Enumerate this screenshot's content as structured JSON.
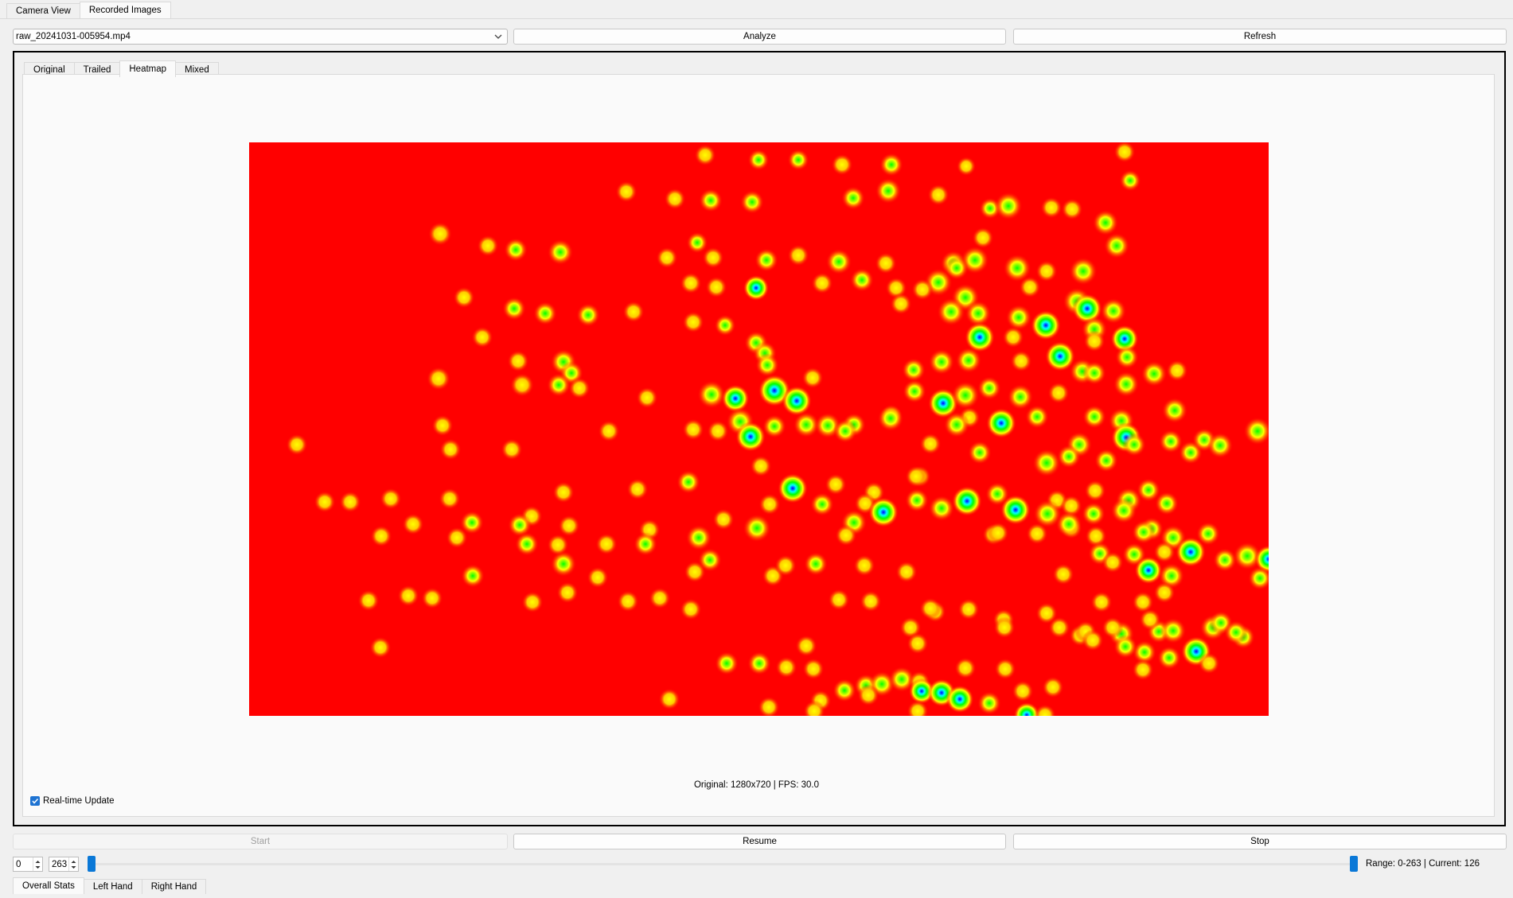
{
  "top_tabs": [
    {
      "label": "Camera View",
      "active": false
    },
    {
      "label": "Recorded Images",
      "active": true
    }
  ],
  "file_select": {
    "value": "raw_20241031-005954.mp4"
  },
  "actions": {
    "analyze_label": "Analyze",
    "refresh_label": "Refresh"
  },
  "view_tabs": [
    {
      "label": "Original",
      "active": false
    },
    {
      "label": "Trailed",
      "active": false
    },
    {
      "label": "Heatmap",
      "active": true
    },
    {
      "label": "Mixed",
      "active": false
    }
  ],
  "info_text": "Original: 1280x720 | FPS: 30.0",
  "realtime_update": {
    "label": "Real-time Update",
    "checked": true
  },
  "playback": {
    "start_label": "Start",
    "resume_label": "Resume",
    "stop_label": "Stop"
  },
  "range": {
    "min_value": "0",
    "max_value": "263",
    "start_fraction": 0.0,
    "end_fraction": 1.0,
    "label": "Range: 0-263 | Current: 126"
  },
  "bottom_tabs": [
    {
      "label": "Overall Stats",
      "active": true
    },
    {
      "label": "Left Hand",
      "active": false
    },
    {
      "label": "Right Hand",
      "active": false
    }
  ],
  "colors": {
    "heat_background": "#ff0000",
    "heat_mid": "#ffff00",
    "heat_high": "#00ff00",
    "heat_peak": "#0000ff",
    "accent": "#0a78d7"
  },
  "icons": {
    "dropdown": "chevron-down-icon",
    "check": "check-icon",
    "spin_up": "spin-up-icon",
    "spin_down": "spin-down-icon"
  }
}
